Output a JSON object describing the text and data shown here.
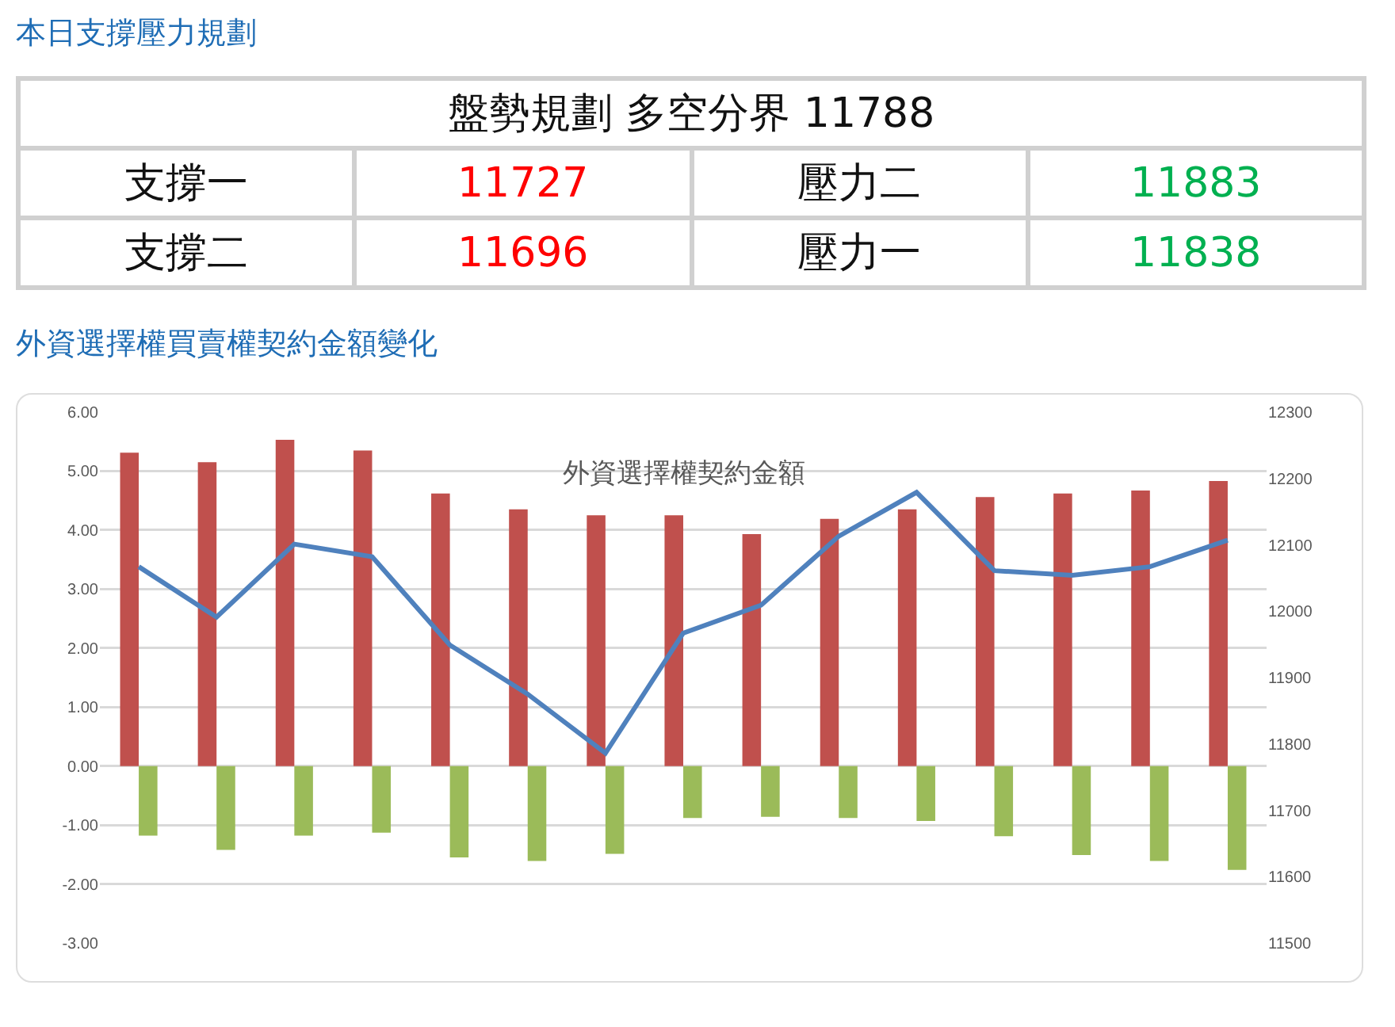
{
  "chart_data": [
    {
      "type": "other",
      "title": "本日支撐壓力規劃",
      "annotations": [
        "盤勢規劃 多空分界 11788",
        "支撐一",
        "11727",
        "壓力二",
        "11883",
        "支撐二",
        "11696",
        "壓力一",
        "11838"
      ]
    },
    {
      "type": "bar",
      "title": "外資選擇權買賣權契約金額變化",
      "subtitle": "外資選擇權契約金額",
      "categories": [
        null,
        null,
        null,
        null,
        null,
        null,
        null,
        null,
        null,
        null,
        null,
        null,
        null,
        null,
        null
      ],
      "series": [
        {
          "color": "#c0504d",
          "values": [
            5.31,
            5.15,
            5.53,
            5.35,
            4.62,
            4.35,
            4.25,
            4.25,
            3.93,
            4.19,
            4.35,
            4.56,
            4.62,
            4.67,
            4.83
          ]
        },
        {
          "color": "#9bbb59",
          "values": [
            -1.18,
            -1.42,
            -1.18,
            -1.13,
            -1.55,
            -1.61,
            -1.49,
            -0.88,
            -0.86,
            -0.88,
            -0.93,
            -1.19,
            -1.51,
            -1.61,
            -1.76
          ]
        },
        {
          "type": "line",
          "axis": "y2",
          "color": "#4f81bd",
          "values": [
            12067,
            11991,
            12101,
            12082,
            11949,
            11875,
            11786,
            11967,
            12009,
            12113,
            12179,
            12061,
            12054,
            12067,
            12107
          ]
        }
      ],
      "ylim": [
        -3,
        6
      ],
      "yticks": [
        {
          "value": -3,
          "label": "-3.00"
        },
        {
          "value": -2,
          "label": "-2.00"
        },
        {
          "value": -1,
          "label": "-1.00"
        },
        {
          "value": 0,
          "label": "0.00"
        },
        {
          "value": 1,
          "label": "1.00"
        },
        {
          "value": 2,
          "label": "2.00"
        },
        {
          "value": 3,
          "label": "3.00"
        },
        {
          "value": 4,
          "label": "4.00"
        },
        {
          "value": 5,
          "label": "5.00"
        },
        {
          "value": 6,
          "label": "6.00"
        }
      ],
      "y2lim": [
        11500,
        12300
      ],
      "y2ticks": [
        11500,
        11600,
        11700,
        11800,
        11900,
        12000,
        12100,
        12200,
        12300
      ],
      "grid": true,
      "legend": false,
      "marker": "none",
      "line_style": "solid"
    }
  ]
}
